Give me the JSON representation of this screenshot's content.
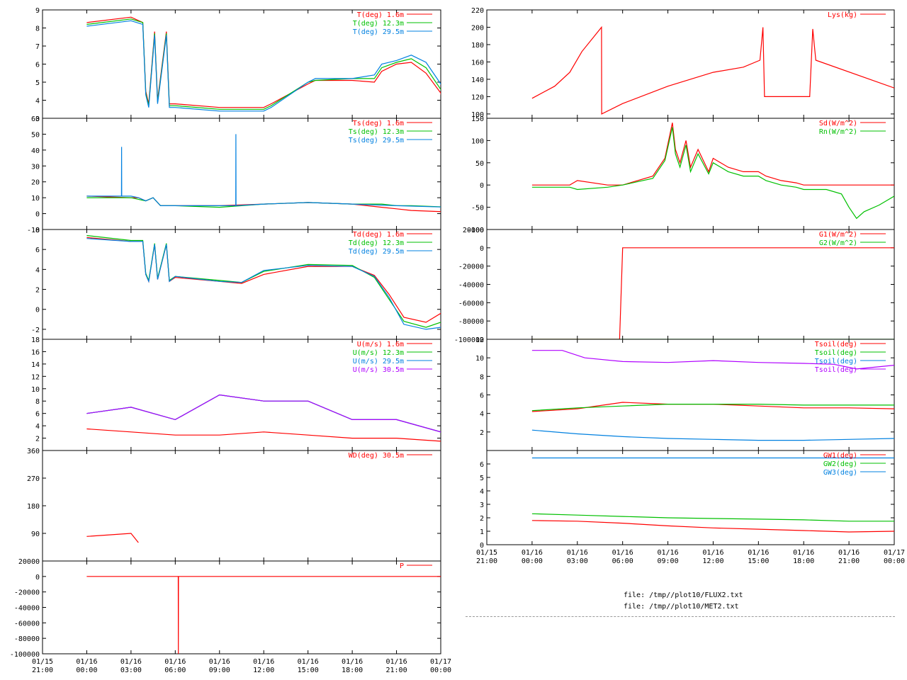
{
  "x_axis": {
    "left_ticks": [
      {
        "d": "01/15",
        "t": "21:00"
      },
      {
        "d": "01/16",
        "t": "00:00"
      },
      {
        "d": "01/16",
        "t": "03:00"
      },
      {
        "d": "01/16",
        "t": "06:00"
      },
      {
        "d": "01/16",
        "t": "09:00"
      },
      {
        "d": "01/16",
        "t": "12:00"
      },
      {
        "d": "01/16",
        "t": "15:00"
      },
      {
        "d": "01/16",
        "t": "18:00"
      },
      {
        "d": "01/16",
        "t": "21:00"
      },
      {
        "d": "01/17",
        "t": "00:00"
      }
    ]
  },
  "files": {
    "line1": "file: /tmp//plot10/FLUX2.txt",
    "line2": "file: /tmp//plot10/MET2.txt"
  },
  "colors": {
    "red": "#ff0000",
    "green": "#00c000",
    "blue": "#0080e0",
    "purple": "#b000ff",
    "axis": "#000000"
  },
  "chart_data": [
    {
      "id": "T",
      "type": "line",
      "ylim": [
        3,
        9
      ],
      "yticks": [
        3,
        4,
        5,
        6,
        7,
        8,
        9
      ],
      "series": [
        {
          "name": "T(deg)  1.6m",
          "color": "#ff0000",
          "x": [
            0,
            3,
            3.8,
            4,
            4.2,
            4.6,
            4.8,
            5.4,
            5.6,
            6,
            9,
            12,
            12.5,
            15,
            15.5,
            18,
            19.5,
            20,
            21,
            22,
            23,
            24,
            24.3,
            24.7
          ],
          "y": [
            8.3,
            8.6,
            8.3,
            4.5,
            3.8,
            7.8,
            4.0,
            7.8,
            3.8,
            3.8,
            3.6,
            3.6,
            3.8,
            4.9,
            5.1,
            5.1,
            5.0,
            5.6,
            6.0,
            6.1,
            5.5,
            4.4,
            3.0,
            3.1
          ]
        },
        {
          "name": "T(deg) 12.3m",
          "color": "#00c000",
          "x": [
            0,
            3,
            3.8,
            4,
            4.2,
            4.6,
            4.8,
            5.4,
            5.6,
            6,
            9,
            12,
            12.5,
            15,
            15.5,
            18,
            19.5,
            20,
            21,
            22,
            23,
            24,
            24.3,
            24.7
          ],
          "y": [
            8.2,
            8.5,
            8.3,
            4.4,
            3.7,
            7.7,
            3.9,
            7.7,
            3.7,
            3.7,
            3.5,
            3.5,
            3.7,
            5.0,
            5.1,
            5.2,
            5.2,
            5.8,
            6.1,
            6.3,
            5.8,
            4.6,
            4.0,
            3.9
          ]
        },
        {
          "name": "T(deg) 29.5m",
          "color": "#0080e0",
          "x": [
            0,
            3,
            3.8,
            4,
            4.2,
            4.6,
            4.8,
            5.4,
            5.6,
            6,
            9,
            12,
            12.5,
            15,
            15.5,
            18,
            19.5,
            20,
            21,
            22,
            23,
            24,
            24.3,
            24.7
          ],
          "y": [
            8.1,
            8.4,
            8.2,
            4.3,
            3.6,
            7.6,
            3.8,
            7.6,
            3.6,
            3.6,
            3.4,
            3.4,
            3.6,
            5.0,
            5.2,
            5.2,
            5.4,
            6.0,
            6.2,
            6.5,
            6.1,
            4.9,
            4.2,
            4.0
          ]
        }
      ]
    },
    {
      "id": "Ts",
      "type": "line",
      "ylim": [
        -10,
        60
      ],
      "yticks": [
        -10,
        0,
        10,
        20,
        30,
        40,
        50,
        60
      ],
      "series": [
        {
          "name": "Ts(deg)  1.6m",
          "color": "#ff0000",
          "x": [
            0,
            3,
            3.5,
            4,
            4.5,
            5,
            6,
            9,
            12,
            15,
            18,
            20,
            21,
            22,
            24.7
          ],
          "y": [
            11,
            10,
            10,
            8,
            10,
            5,
            5,
            5,
            6,
            7,
            6,
            4,
            3,
            2,
            1
          ]
        },
        {
          "name": "Ts(deg) 12.3m",
          "color": "#00c000",
          "x": [
            0,
            3,
            3.5,
            4,
            4.5,
            5,
            6,
            9,
            12,
            15,
            18,
            20,
            21,
            22,
            24.7
          ],
          "y": [
            10,
            10,
            9,
            8,
            10,
            5,
            5,
            4,
            6,
            7,
            6,
            6,
            5,
            5,
            4
          ]
        },
        {
          "name": "Ts(deg) 29.5m",
          "color": "#0080e0",
          "x": [
            0,
            2.35,
            2.36,
            2.37,
            3,
            3.5,
            4,
            4.5,
            5,
            6,
            9,
            10.1,
            10.11,
            10.12,
            12,
            15,
            18,
            21,
            24.7
          ],
          "y": [
            11,
            11,
            42,
            11,
            11,
            10,
            8,
            10,
            5,
            5,
            5,
            5,
            50,
            5,
            6,
            7,
            6,
            5,
            4
          ]
        }
      ]
    },
    {
      "id": "Td",
      "type": "line",
      "ylim": [
        -3,
        8
      ],
      "yticks": [
        -2,
        0,
        2,
        4,
        6,
        8
      ],
      "series": [
        {
          "name": "Td(deg)  1.6m",
          "color": "#ff0000",
          "x": [
            0,
            3,
            3.8,
            4,
            4.2,
            4.6,
            4.8,
            5.4,
            5.6,
            6,
            9,
            10.5,
            12,
            15,
            18,
            19.5,
            20.5,
            21.5,
            23,
            24,
            24.7
          ],
          "y": [
            7.2,
            6.8,
            6.8,
            3.5,
            2.8,
            6.5,
            3.0,
            6.5,
            2.8,
            3.2,
            2.8,
            2.6,
            3.5,
            4.3,
            4.3,
            3.4,
            1.5,
            -0.8,
            -1.3,
            -0.4,
            0.3
          ]
        },
        {
          "name": "Td(deg) 12.3m",
          "color": "#00c000",
          "x": [
            0,
            3,
            3.8,
            4,
            4.2,
            4.6,
            4.8,
            5.4,
            5.6,
            6,
            9,
            10.5,
            12,
            15,
            18,
            19.5,
            20.5,
            21.5,
            23,
            24,
            24.7
          ],
          "y": [
            7.4,
            6.9,
            6.9,
            3.6,
            2.9,
            6.6,
            3.1,
            6.6,
            2.9,
            3.3,
            2.9,
            2.7,
            3.8,
            4.5,
            4.4,
            3.2,
            1.0,
            -1.2,
            -1.8,
            -1.3,
            -1.0
          ]
        },
        {
          "name": "Td(deg) 29.5m",
          "color": "#0080e0",
          "x": [
            0,
            3,
            3.8,
            4,
            4.2,
            4.6,
            4.8,
            5.4,
            5.6,
            6,
            9,
            10.5,
            12,
            15,
            18,
            19.5,
            20.5,
            21.5,
            23,
            24,
            24.7
          ],
          "y": [
            7.1,
            6.8,
            6.8,
            3.5,
            2.8,
            6.5,
            3.0,
            6.5,
            2.8,
            3.3,
            2.8,
            2.7,
            3.9,
            4.4,
            4.3,
            3.3,
            1.2,
            -1.5,
            -2.0,
            -1.8,
            -1.5
          ]
        }
      ]
    },
    {
      "id": "U",
      "type": "line",
      "ylim": [
        0,
        18
      ],
      "yticks": [
        2,
        4,
        6,
        8,
        10,
        12,
        14,
        16,
        18
      ],
      "series": [
        {
          "name": "U(m/s)  1.6m",
          "color": "#ff0000",
          "x": [
            0,
            3,
            6,
            9,
            12,
            15,
            18,
            21,
            24,
            24.7
          ],
          "y": [
            3.5,
            3.0,
            2.5,
            2.5,
            3.0,
            2.5,
            2.0,
            2.0,
            1.5,
            1.0
          ]
        },
        {
          "name": "U(m/s) 12.3m",
          "color": "#00c000",
          "x": [
            0,
            3,
            6,
            9,
            12,
            15,
            18,
            21,
            24,
            24.7
          ],
          "y": [
            6,
            7,
            5,
            9,
            8,
            8,
            5,
            5,
            3,
            1.5
          ]
        },
        {
          "name": "U(m/s) 29.5m",
          "color": "#0080e0",
          "x": [
            0,
            3,
            6,
            9,
            12,
            15,
            18,
            21,
            24,
            24.7
          ],
          "y": [
            6,
            7,
            5,
            9,
            8,
            8,
            5,
            5,
            3,
            1.5
          ]
        },
        {
          "name": "U(m/s) 30.5m",
          "color": "#b000ff",
          "x": [
            0,
            3,
            6,
            9,
            12,
            15,
            18,
            21,
            24,
            24.7
          ],
          "y": [
            6,
            7,
            5,
            9,
            8,
            8,
            5,
            5,
            3,
            1.5
          ]
        }
      ]
    },
    {
      "id": "WD",
      "type": "line",
      "ylim": [
        0,
        360
      ],
      "yticks": [
        90,
        180,
        270,
        360
      ],
      "series": [
        {
          "name": "WD(deg) 30.5m",
          "color": "#ff0000",
          "x": [
            0,
            3,
            3.5
          ],
          "y": [
            80,
            90,
            60
          ]
        }
      ]
    },
    {
      "id": "P",
      "type": "line",
      "ylim": [
        -100000,
        20000
      ],
      "yticks": [
        -100000,
        -80000,
        -60000,
        -40000,
        -20000,
        0,
        20000
      ],
      "series": [
        {
          "name": "P",
          "color": "#ff0000",
          "x": [
            0,
            6.2,
            6.21,
            6.22,
            24.7
          ],
          "y": [
            0,
            0,
            -100000,
            0,
            0
          ]
        }
      ]
    },
    {
      "id": "Lys",
      "type": "line",
      "ylim": [
        95,
        220
      ],
      "yticks": [
        100,
        120,
        140,
        160,
        180,
        200,
        220
      ],
      "series": [
        {
          "name": "Lys(kg)",
          "color": "#ff0000",
          "x": [
            0,
            1.5,
            2.5,
            3.3,
            4.6,
            4.61,
            6,
            9,
            12,
            14,
            15.1,
            15.3,
            15.4,
            17.5,
            18.4,
            18.6,
            18.8,
            24
          ],
          "y": [
            118,
            132,
            148,
            172,
            200,
            100,
            112,
            132,
            148,
            154,
            162,
            200,
            120,
            120,
            120,
            198,
            162,
            130
          ]
        }
      ]
    },
    {
      "id": "Sd",
      "type": "line",
      "ylim": [
        -100,
        150
      ],
      "yticks": [
        -100,
        -50,
        0,
        50,
        100,
        150
      ],
      "series": [
        {
          "name": "Sd(W/m^2)",
          "color": "#ff0000",
          "x": [
            0,
            2.5,
            3,
            5,
            6,
            8,
            8.8,
            9.3,
            9.5,
            9.8,
            10.2,
            10.5,
            11,
            11.7,
            12,
            13,
            14,
            15,
            15.5,
            16.5,
            17.5,
            18,
            19.5,
            21,
            22,
            23,
            24
          ],
          "y": [
            0,
            0,
            10,
            0,
            0,
            20,
            60,
            140,
            80,
            50,
            100,
            40,
            80,
            30,
            60,
            40,
            30,
            30,
            20,
            10,
            5,
            0,
            0,
            0,
            0,
            0,
            0
          ]
        },
        {
          "name": "Rn(W/m^2)",
          "color": "#00c000",
          "x": [
            0,
            2.5,
            3,
            5,
            6,
            8,
            8.8,
            9.3,
            9.5,
            9.8,
            10.2,
            10.5,
            11,
            11.7,
            12,
            13,
            14,
            15,
            15.5,
            16.5,
            17.5,
            18,
            19.5,
            20.5,
            21,
            21.5,
            22,
            23,
            24
          ],
          "y": [
            -5,
            -5,
            -10,
            -5,
            0,
            15,
            55,
            130,
            70,
            40,
            90,
            30,
            70,
            25,
            50,
            30,
            20,
            20,
            10,
            0,
            -5,
            -10,
            -10,
            -20,
            -50,
            -75,
            -60,
            -45,
            -25
          ]
        }
      ]
    },
    {
      "id": "G",
      "type": "line",
      "ylim": [
        -100000,
        20000
      ],
      "yticks": [
        -100000,
        -80000,
        -60000,
        -40000,
        -20000,
        0,
        20000
      ],
      "series": [
        {
          "name": "G1(W/m^2)",
          "color": "#ff0000",
          "x": [
            0,
            5.8,
            6,
            24
          ],
          "y": [
            -100000,
            -100000,
            0,
            0
          ]
        },
        {
          "name": "G2(W/m^2)",
          "color": "#00c000",
          "x": [
            0,
            24
          ],
          "y": [
            -100000,
            -100000
          ]
        }
      ]
    },
    {
      "id": "Tsoil",
      "type": "line",
      "ylim": [
        0,
        12
      ],
      "yticks": [
        2,
        4,
        6,
        8,
        10,
        12
      ],
      "series": [
        {
          "name": "Tsoil(deg)",
          "color": "#ff0000",
          "x": [
            0,
            3,
            6,
            9,
            12,
            15,
            18,
            21,
            24
          ],
          "y": [
            4.2,
            4.5,
            5.2,
            5.0,
            5.0,
            4.8,
            4.6,
            4.6,
            4.5
          ]
        },
        {
          "name": "Tsoil(deg)",
          "color": "#00c000",
          "x": [
            0,
            3,
            6,
            9,
            12,
            15,
            18,
            21,
            24
          ],
          "y": [
            4.3,
            4.6,
            4.8,
            5.0,
            5.0,
            5.0,
            4.9,
            4.9,
            4.9
          ]
        },
        {
          "name": "Tsoil(deg)",
          "color": "#0080e0",
          "x": [
            0,
            3,
            6,
            9,
            12,
            15,
            18,
            21,
            24
          ],
          "y": [
            2.2,
            1.8,
            1.5,
            1.3,
            1.2,
            1.1,
            1.1,
            1.2,
            1.3
          ]
        },
        {
          "name": "Tsoil(deg)",
          "color": "#b000ff",
          "x": [
            0,
            2,
            3.5,
            6,
            9,
            12,
            15,
            18,
            20,
            21.5,
            24
          ],
          "y": [
            10.8,
            10.8,
            10.0,
            9.6,
            9.5,
            9.7,
            9.5,
            9.4,
            9.3,
            8.8,
            9.2
          ]
        }
      ]
    },
    {
      "id": "GW",
      "type": "line",
      "ylim": [
        0,
        7
      ],
      "yticks": [
        0,
        1,
        2,
        3,
        4,
        5,
        6
      ],
      "series": [
        {
          "name": "GW1(deg)",
          "color": "#ff0000",
          "x": [
            0,
            3,
            6,
            9,
            12,
            15,
            18,
            21,
            24
          ],
          "y": [
            1.8,
            1.75,
            1.6,
            1.4,
            1.25,
            1.15,
            1.05,
            0.95,
            1.0
          ]
        },
        {
          "name": "GW2(deg)",
          "color": "#00c000",
          "x": [
            0,
            3,
            6,
            9,
            12,
            15,
            18,
            21,
            24
          ],
          "y": [
            2.3,
            2.2,
            2.1,
            2.0,
            1.95,
            1.9,
            1.85,
            1.75,
            1.75
          ]
        },
        {
          "name": "GW3(deg)",
          "color": "#0080e0",
          "x": [
            0,
            24
          ],
          "y": [
            6.45,
            6.45
          ]
        }
      ]
    }
  ]
}
